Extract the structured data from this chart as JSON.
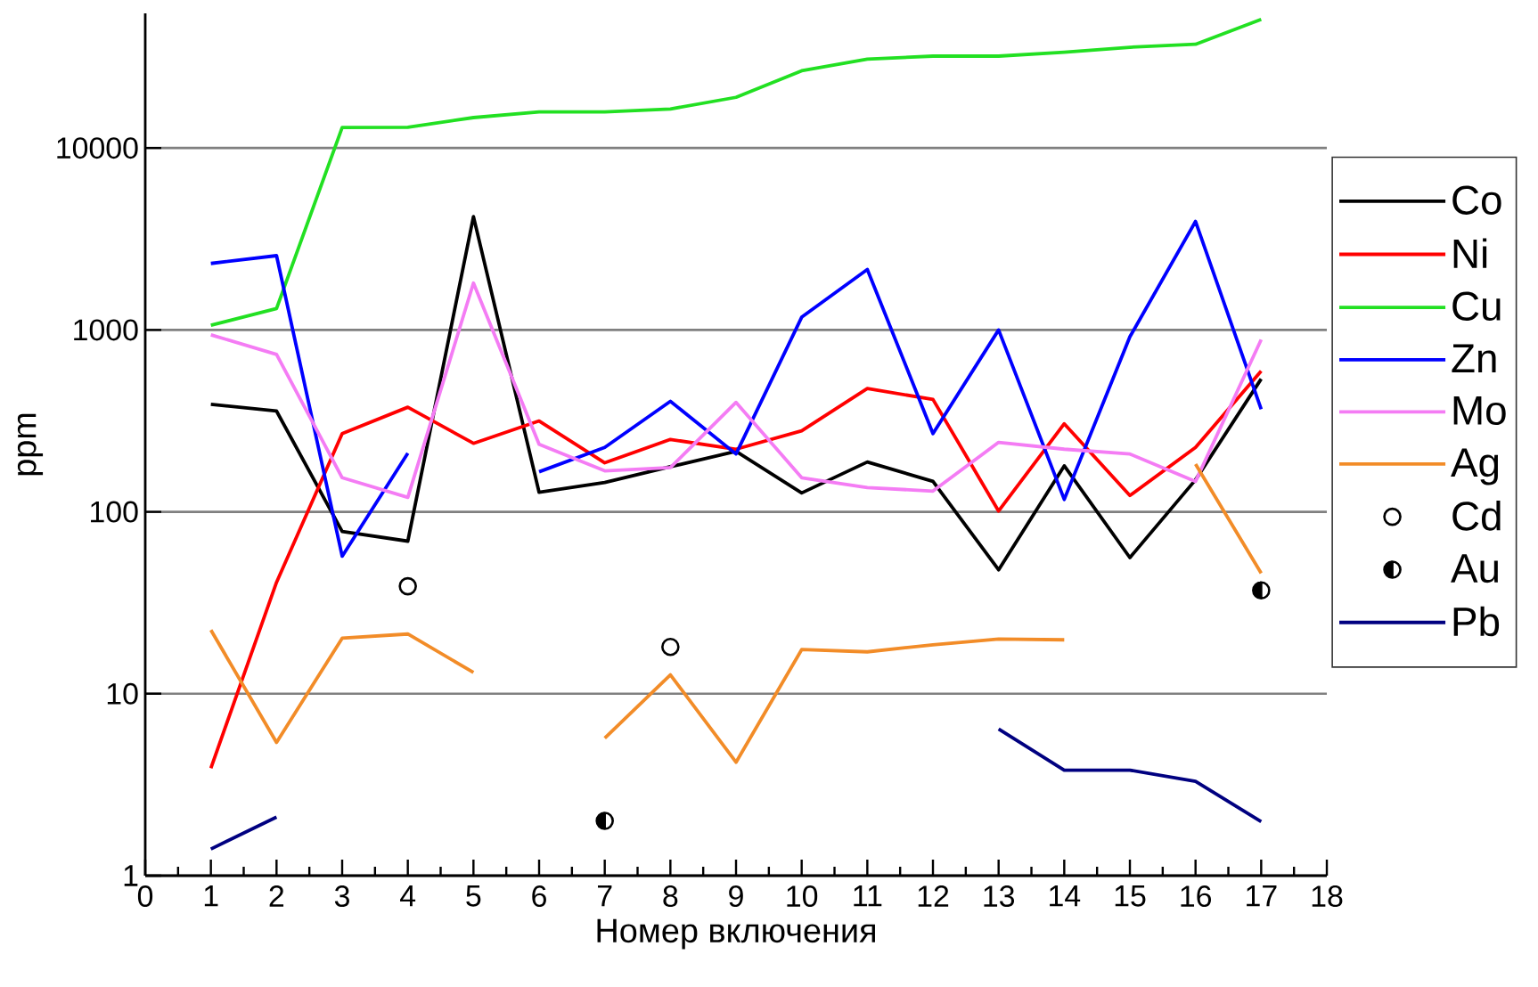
{
  "chart_data": {
    "type": "line",
    "xlabel": "Номер включения",
    "ylabel": "ppm",
    "x": [
      1,
      2,
      3,
      4,
      5,
      6,
      7,
      8,
      9,
      10,
      11,
      12,
      13,
      14,
      15,
      16,
      17
    ],
    "xlim": [
      0,
      18
    ],
    "xticks": [
      0,
      1,
      2,
      3,
      4,
      5,
      6,
      7,
      8,
      9,
      10,
      11,
      12,
      13,
      14,
      15,
      16,
      17,
      18
    ],
    "ylim": [
      1,
      55000
    ],
    "yticks": [
      1,
      10,
      100,
      1000,
      10000
    ],
    "log": "y",
    "grid": "y",
    "legend": "right",
    "line_style": "solid",
    "series": [
      {
        "name": "Co",
        "color": "#000000",
        "values": [
          390,
          358,
          78,
          69,
          4200,
          128,
          145,
          177,
          215,
          127,
          188,
          147,
          48,
          179,
          56,
          150,
          538
        ]
      },
      {
        "name": "Ni",
        "color": "#ff0000",
        "values": [
          3.9,
          41,
          269,
          376,
          238,
          316,
          186,
          250,
          221,
          279,
          476,
          415,
          101,
          305,
          123,
          226,
          595
        ]
      },
      {
        "name": "Cu",
        "color": "#22e022",
        "values": [
          1060,
          1310,
          12970,
          13000,
          14700,
          15800,
          15800,
          16400,
          19000,
          26600,
          30800,
          32000,
          32000,
          33600,
          35800,
          37200,
          51000
        ]
      },
      {
        "name": "Zn",
        "color": "#0000ff",
        "values": [
          2320,
          2560,
          57,
          210,
          null,
          166,
          226,
          405,
          208,
          1175,
          2150,
          269,
          1000,
          117,
          917,
          3950,
          367
        ]
      },
      {
        "name": "Mo",
        "color": "#f47cf4",
        "values": [
          940,
          734,
          154,
          120,
          1810,
          235,
          168,
          175,
          400,
          154,
          136,
          130,
          241,
          221,
          208,
          147,
          884
        ]
      },
      {
        "name": "Ag",
        "color": "#f28c28",
        "values": [
          22.4,
          5.4,
          20.2,
          21.3,
          13.1,
          null,
          5.7,
          12.7,
          4.2,
          17.5,
          17.0,
          18.6,
          20.0,
          19.8,
          null,
          183,
          46
        ]
      },
      {
        "name": "Cd",
        "type": "scatter",
        "marker": "circle",
        "color": "#000000",
        "values": [
          null,
          null,
          null,
          39,
          null,
          null,
          null,
          18.1,
          null,
          null,
          null,
          null,
          null,
          null,
          null,
          null,
          null
        ]
      },
      {
        "name": "Au",
        "type": "scatter",
        "color": "#000000",
        "values": [
          null,
          null,
          null,
          null,
          null,
          null,
          2.0,
          null,
          null,
          null,
          null,
          null,
          null,
          null,
          null,
          null,
          37
        ]
      },
      {
        "name": "Pb",
        "color": "#000080",
        "values": [
          1.4,
          2.1,
          null,
          null,
          null,
          null,
          null,
          null,
          null,
          null,
          null,
          null,
          6.4,
          3.8,
          3.8,
          3.3,
          1.98
        ]
      }
    ]
  }
}
